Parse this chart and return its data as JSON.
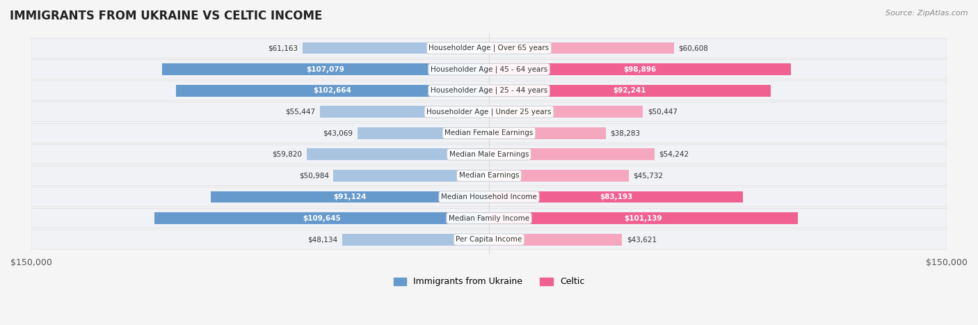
{
  "title": "IMMIGRANTS FROM UKRAINE VS CELTIC INCOME",
  "source": "Source: ZipAtlas.com",
  "categories": [
    "Per Capita Income",
    "Median Family Income",
    "Median Household Income",
    "Median Earnings",
    "Median Male Earnings",
    "Median Female Earnings",
    "Householder Age | Under 25 years",
    "Householder Age | 25 - 44 years",
    "Householder Age | 45 - 64 years",
    "Householder Age | Over 65 years"
  ],
  "ukraine_values": [
    48134,
    109645,
    91124,
    50984,
    59820,
    43069,
    55447,
    102664,
    107079,
    61163
  ],
  "celtic_values": [
    43621,
    101139,
    83193,
    45732,
    54242,
    38283,
    50447,
    92241,
    98896,
    60608
  ],
  "ukraine_labels": [
    "$48,134",
    "$109,645",
    "$91,124",
    "$50,984",
    "$59,820",
    "$43,069",
    "$55,447",
    "$102,664",
    "$107,079",
    "$61,163"
  ],
  "celtic_labels": [
    "$43,621",
    "$101,139",
    "$83,193",
    "$45,732",
    "$54,242",
    "$38,283",
    "$50,447",
    "$92,241",
    "$98,896",
    "$60,608"
  ],
  "ukraine_color_light": "#a8c4e0",
  "ukraine_color_dark": "#6699cc",
  "celtic_color_light": "#f4a7be",
  "celtic_color_dark": "#f06090",
  "max_value": 150000,
  "x_ticks": [
    -150000,
    150000
  ],
  "x_tick_labels": [
    "$150,000",
    "$150,000"
  ],
  "background_color": "#f5f5f5",
  "row_bg_color": "#ffffff",
  "legend_ukraine": "Immigrants from Ukraine",
  "legend_celtic": "Celtic"
}
